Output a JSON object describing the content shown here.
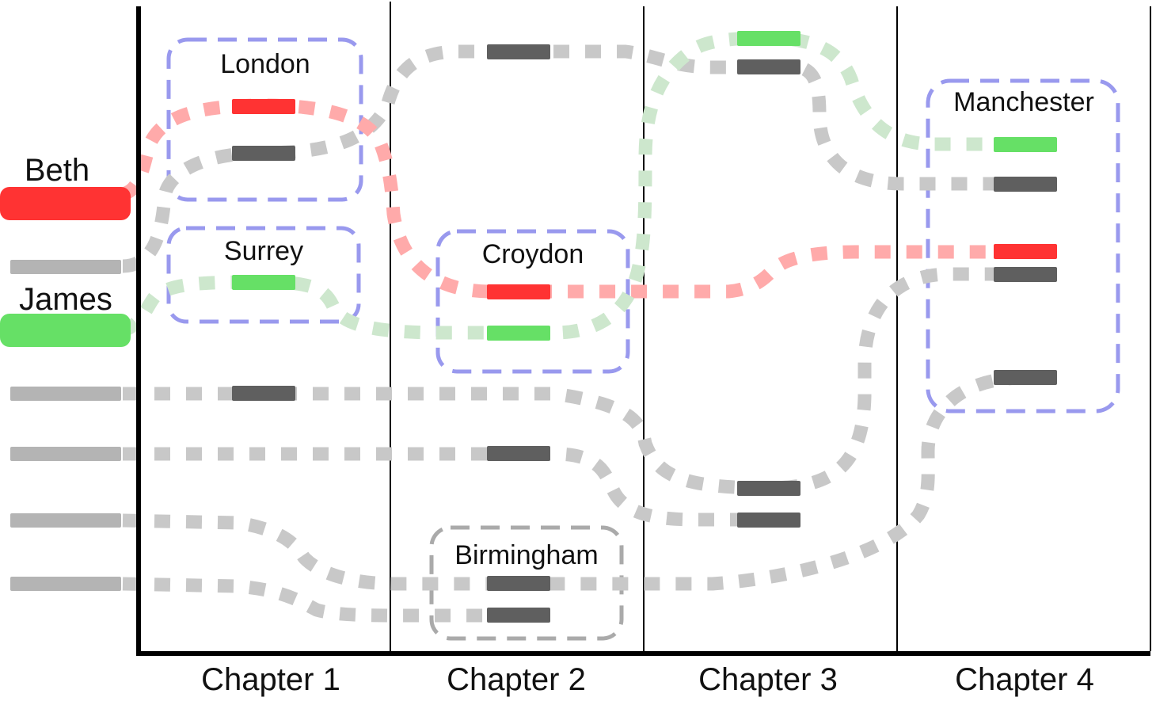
{
  "chapters": [
    "Chapter 1",
    "Chapter 2",
    "Chapter 3",
    "Chapter 4"
  ],
  "characters": [
    {
      "id": "beth",
      "name": "Beth",
      "color": "#ff3333"
    },
    {
      "id": "james",
      "name": "James",
      "color": "#66e066"
    }
  ],
  "groups": [
    {
      "id": "london",
      "label": "London",
      "style": "blue"
    },
    {
      "id": "surrey",
      "label": "Surrey",
      "style": "blue"
    },
    {
      "id": "croydon",
      "label": "Croydon",
      "style": "blue"
    },
    {
      "id": "birmingham",
      "label": "Birmingham",
      "style": "gray"
    },
    {
      "id": "manchester",
      "label": "Manchester",
      "style": "blue"
    }
  ],
  "colors": {
    "beth_line": "#ffaaaa",
    "james_line": "#cde7cd",
    "other_line": "#c8c8c8",
    "other_marker": "#5f5f5f",
    "other_legend": "#b4b4b4",
    "blue_box": "#9999ee",
    "gray_box": "#aaaaaa",
    "axis": "#000000"
  }
}
